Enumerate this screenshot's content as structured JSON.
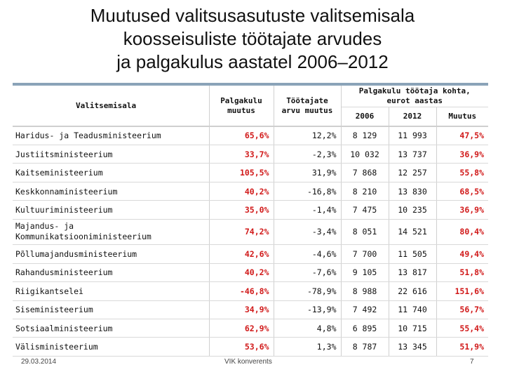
{
  "title_lines": [
    "Muutused valitsusasutuste valitsemisala",
    "koosseisuliste töötajate arvudes",
    "ja palgakulus aastatel 2006–2012"
  ],
  "table": {
    "headers": {
      "area": "Valitsemisala",
      "wage_change": "Palgakulu muutus",
      "staff_change": "Töötajate arvu muutus",
      "per_employee": "Palgakulu töötaja kohta, eurot aastas",
      "y2006": "2006",
      "y2012": "2012",
      "change": "Muutus"
    },
    "rows": [
      {
        "name": "Haridus- ja Teadusministeerium",
        "wage": "65,6%",
        "staff": "12,2%",
        "v2006": "8 129",
        "v2012": "11 993",
        "change": "47,5%"
      },
      {
        "name": "Justiitsministeerium",
        "wage": "33,7%",
        "staff": "-2,3%",
        "v2006": "10 032",
        "v2012": "13 737",
        "change": "36,9%"
      },
      {
        "name": "Kaitseministeerium",
        "wage": "105,5%",
        "staff": "31,9%",
        "v2006": "7 868",
        "v2012": "12 257",
        "change": "55,8%"
      },
      {
        "name": "Keskkonnaministeerium",
        "wage": "40,2%",
        "staff": "-16,8%",
        "v2006": "8 210",
        "v2012": "13 830",
        "change": "68,5%"
      },
      {
        "name": "Kultuuriministeerium",
        "wage": "35,0%",
        "staff": "-1,4%",
        "v2006": "7 475",
        "v2012": "10 235",
        "change": "36,9%"
      },
      {
        "name": "Majandus- ja Kommunikatsiooniministeerium",
        "wage": "74,2%",
        "staff": "-3,4%",
        "v2006": "8 051",
        "v2012": "14 521",
        "change": "80,4%"
      },
      {
        "name": "Põllumajandusministeerium",
        "wage": "42,6%",
        "staff": "-4,6%",
        "v2006": "7 700",
        "v2012": "11 505",
        "change": "49,4%"
      },
      {
        "name": "Rahandusministeerium",
        "wage": "40,2%",
        "staff": "-7,6%",
        "v2006": "9 105",
        "v2012": "13 817",
        "change": "51,8%"
      },
      {
        "name": "Riigikantselei",
        "wage": "-46,8%",
        "staff": "-78,9%",
        "v2006": "8 988",
        "v2012": "22 616",
        "change": "151,6%"
      },
      {
        "name": "Siseministeerium",
        "wage": "34,9%",
        "staff": "-13,9%",
        "v2006": "7 492",
        "v2012": "11 740",
        "change": "56,7%"
      },
      {
        "name": "Sotsiaalministeerium",
        "wage": "62,9%",
        "staff": "4,8%",
        "v2006": "6 895",
        "v2012": "10 715",
        "change": "55,4%"
      },
      {
        "name": "Välisministeerium",
        "wage": "53,6%",
        "staff": "1,3%",
        "v2006": "8 787",
        "v2012": "13 345",
        "change": "51,9%"
      }
    ]
  },
  "footer": {
    "date": "29.03.2014",
    "event": "VIK konverents",
    "page": "7"
  },
  "colors": {
    "highlight": "#d11a1a"
  }
}
